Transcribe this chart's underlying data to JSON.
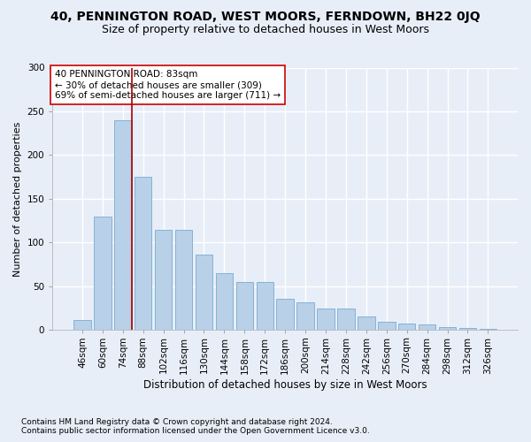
{
  "title": "40, PENNINGTON ROAD, WEST MOORS, FERNDOWN, BH22 0JQ",
  "subtitle": "Size of property relative to detached houses in West Moors",
  "xlabel": "Distribution of detached houses by size in West Moors",
  "ylabel": "Number of detached properties",
  "categories": [
    "46sqm",
    "60sqm",
    "74sqm",
    "88sqm",
    "102sqm",
    "116sqm",
    "130sqm",
    "144sqm",
    "158sqm",
    "172sqm",
    "186sqm",
    "200sqm",
    "214sqm",
    "228sqm",
    "242sqm",
    "256sqm",
    "270sqm",
    "284sqm",
    "298sqm",
    "312sqm",
    "326sqm"
  ],
  "values": [
    12,
    130,
    240,
    175,
    115,
    115,
    86,
    65,
    55,
    55,
    36,
    32,
    25,
    25,
    16,
    10,
    8,
    7,
    4,
    3,
    2
  ],
  "bar_color": "#b8d0e8",
  "bar_edge_color": "#7aabcf",
  "vline_color": "#aa0000",
  "annotation_box_text": "40 PENNINGTON ROAD: 83sqm\n← 30% of detached houses are smaller (309)\n69% of semi-detached houses are larger (711) →",
  "annotation_box_color": "#ffffff",
  "annotation_box_edge_color": "#cc0000",
  "ylim": [
    0,
    300
  ],
  "yticks": [
    0,
    50,
    100,
    150,
    200,
    250,
    300
  ],
  "footer_line1": "Contains HM Land Registry data © Crown copyright and database right 2024.",
  "footer_line2": "Contains public sector information licensed under the Open Government Licence v3.0.",
  "background_color": "#e8eef8",
  "plot_background_color": "#e8eef8",
  "grid_color": "#ffffff",
  "title_fontsize": 10,
  "subtitle_fontsize": 9,
  "xlabel_fontsize": 8.5,
  "ylabel_fontsize": 8,
  "tick_fontsize": 7.5,
  "footer_fontsize": 6.5,
  "annotation_fontsize": 7.5
}
